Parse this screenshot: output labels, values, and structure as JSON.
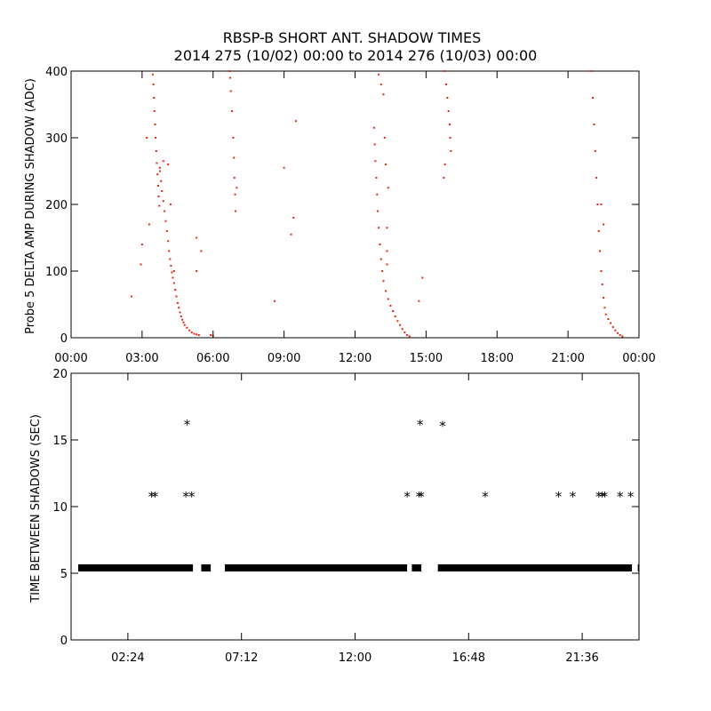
{
  "chart_data": [
    {
      "type": "scatter",
      "title": "RBSP-B SHORT ANT. SHADOW TIMES",
      "subtitle": "2014 275 (10/02) 00:00 to 2014 276 (10/03) 00:00",
      "xlabel": "",
      "ylabel": "Probe 5 DELTA AMP DURING SHADOW (ADC)",
      "xlim": [
        0,
        24
      ],
      "ylim": [
        0,
        400
      ],
      "xtick_labels": [
        "00:00",
        "03:00",
        "06:00",
        "09:00",
        "12:00",
        "15:00",
        "18:00",
        "21:00",
        "00:00"
      ],
      "ytick_labels": [
        "0",
        "100",
        "200",
        "300",
        "400"
      ],
      "color": "#e8260c",
      "points": [
        [
          3.45,
          395
        ],
        [
          3.48,
          380
        ],
        [
          3.5,
          360
        ],
        [
          3.52,
          340
        ],
        [
          3.55,
          320
        ],
        [
          3.57,
          300
        ],
        [
          3.6,
          280
        ],
        [
          3.62,
          262
        ],
        [
          3.65,
          245
        ],
        [
          3.68,
          228
        ],
        [
          3.7,
          212
        ],
        [
          3.73,
          198
        ],
        [
          3.76,
          250
        ],
        [
          3.8,
          235
        ],
        [
          3.84,
          220
        ],
        [
          3.9,
          205
        ],
        [
          3.95,
          190
        ],
        [
          4.0,
          175
        ],
        [
          4.05,
          160
        ],
        [
          4.1,
          145
        ],
        [
          4.14,
          130
        ],
        [
          4.18,
          118
        ],
        [
          4.22,
          108
        ],
        [
          4.26,
          98
        ],
        [
          4.3,
          90
        ],
        [
          4.35,
          82
        ],
        [
          4.4,
          72
        ],
        [
          4.45,
          62
        ],
        [
          4.5,
          52
        ],
        [
          4.55,
          45
        ],
        [
          4.6,
          38
        ],
        [
          4.65,
          32
        ],
        [
          4.7,
          27
        ],
        [
          4.75,
          23
        ],
        [
          4.8,
          19
        ],
        [
          4.9,
          15
        ],
        [
          5.0,
          11
        ],
        [
          5.1,
          8
        ],
        [
          5.2,
          6
        ],
        [
          5.3,
          5
        ],
        [
          5.4,
          4
        ],
        [
          5.9,
          4
        ],
        [
          6.0,
          3
        ],
        [
          3.0,
          140
        ],
        [
          2.95,
          110
        ],
        [
          2.55,
          62
        ],
        [
          3.2,
          300
        ],
        [
          3.3,
          170
        ],
        [
          3.75,
          255
        ],
        [
          3.9,
          265
        ],
        [
          4.1,
          260
        ],
        [
          4.2,
          200
        ],
        [
          4.35,
          100
        ],
        [
          5.3,
          150
        ],
        [
          5.5,
          130
        ],
        [
          5.3,
          100
        ],
        [
          6.7,
          400
        ],
        [
          6.75,
          370
        ],
        [
          6.8,
          340
        ],
        [
          6.85,
          300
        ],
        [
          6.88,
          270
        ],
        [
          6.9,
          240
        ],
        [
          6.93,
          215
        ],
        [
          6.95,
          190
        ],
        [
          7.0,
          225
        ],
        [
          6.72,
          390
        ],
        [
          9.5,
          325
        ],
        [
          9.4,
          180
        ],
        [
          9.3,
          155
        ],
        [
          9.0,
          255
        ],
        [
          8.6,
          55
        ],
        [
          12.8,
          315
        ],
        [
          12.83,
          290
        ],
        [
          12.86,
          265
        ],
        [
          12.9,
          240
        ],
        [
          12.93,
          215
        ],
        [
          12.96,
          190
        ],
        [
          13.0,
          165
        ],
        [
          13.05,
          140
        ],
        [
          13.1,
          118
        ],
        [
          13.15,
          100
        ],
        [
          13.2,
          85
        ],
        [
          13.3,
          70
        ],
        [
          13.4,
          58
        ],
        [
          13.5,
          48
        ],
        [
          13.6,
          40
        ],
        [
          13.7,
          32
        ],
        [
          13.8,
          25
        ],
        [
          13.9,
          19
        ],
        [
          14.0,
          13
        ],
        [
          14.1,
          8
        ],
        [
          14.2,
          4
        ],
        [
          14.3,
          2
        ],
        [
          13.25,
          300
        ],
        [
          13.3,
          260
        ],
        [
          13.4,
          225
        ],
        [
          13.35,
          165
        ],
        [
          13.35,
          130
        ],
        [
          13.35,
          110
        ],
        [
          14.7,
          55
        ],
        [
          14.85,
          90
        ],
        [
          13.0,
          395
        ],
        [
          13.1,
          380
        ],
        [
          13.2,
          365
        ],
        [
          15.8,
          400
        ],
        [
          15.85,
          380
        ],
        [
          15.9,
          360
        ],
        [
          15.95,
          340
        ],
        [
          16.0,
          320
        ],
        [
          16.02,
          300
        ],
        [
          16.05,
          280
        ],
        [
          15.8,
          260
        ],
        [
          15.75,
          240
        ],
        [
          22.0,
          400
        ],
        [
          22.05,
          360
        ],
        [
          22.1,
          320
        ],
        [
          22.15,
          280
        ],
        [
          22.2,
          240
        ],
        [
          22.25,
          200
        ],
        [
          22.3,
          160
        ],
        [
          22.35,
          130
        ],
        [
          22.4,
          100
        ],
        [
          22.45,
          80
        ],
        [
          22.5,
          60
        ],
        [
          22.55,
          45
        ],
        [
          22.6,
          35
        ],
        [
          22.7,
          28
        ],
        [
          22.8,
          22
        ],
        [
          22.9,
          16
        ],
        [
          23.0,
          11
        ],
        [
          23.1,
          7
        ],
        [
          23.2,
          4
        ],
        [
          23.3,
          2
        ],
        [
          22.4,
          200
        ],
        [
          22.5,
          170
        ]
      ]
    },
    {
      "type": "scatter",
      "title": "",
      "xlabel": "",
      "ylabel": "TIME BETWEEN SHADOWS (SEC)",
      "xlim": [
        0,
        24
      ],
      "ylim": [
        0,
        20
      ],
      "xtick_labels": [
        "02:24",
        "07:12",
        "12:00",
        "16:48",
        "21:36"
      ],
      "ytick_labels": [
        "0",
        "5",
        "10",
        "15",
        "20"
      ],
      "marker": "*",
      "color": "#000000",
      "band_value": 5.4,
      "band_segments": [
        [
          0.3,
          5.15
        ],
        [
          5.5,
          5.9
        ],
        [
          6.5,
          14.2
        ],
        [
          14.4,
          14.8
        ],
        [
          15.5,
          23.7
        ],
        [
          23.95,
          24.3
        ]
      ],
      "points": [
        [
          3.4,
          10.8
        ],
        [
          3.55,
          10.8
        ],
        [
          4.9,
          16.2
        ],
        [
          4.85,
          10.8
        ],
        [
          5.1,
          10.8
        ],
        [
          14.2,
          10.8
        ],
        [
          14.7,
          10.8
        ],
        [
          14.8,
          10.8
        ],
        [
          14.75,
          16.2
        ],
        [
          15.7,
          16.1
        ],
        [
          17.5,
          10.8
        ],
        [
          20.6,
          10.8
        ],
        [
          21.2,
          10.8
        ],
        [
          22.3,
          10.8
        ],
        [
          22.45,
          10.8
        ],
        [
          22.55,
          10.8
        ],
        [
          23.2,
          10.8
        ],
        [
          23.65,
          10.8
        ]
      ]
    }
  ]
}
